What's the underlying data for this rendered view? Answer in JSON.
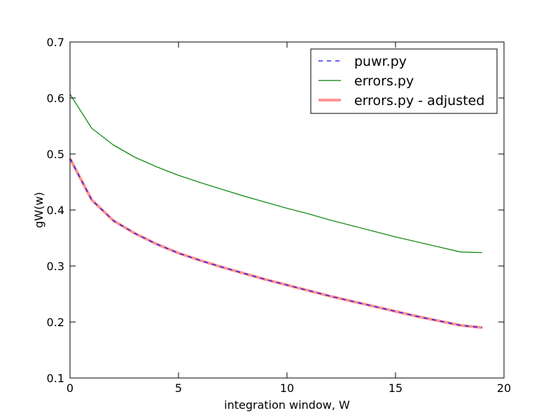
{
  "chart_data": {
    "type": "line",
    "title": "",
    "xlabel": "integration window, W",
    "ylabel": "gW(w)",
    "xlim": [
      0,
      20
    ],
    "ylim": [
      0.1,
      0.7
    ],
    "xticks": [
      "0",
      "5",
      "10",
      "15",
      "20"
    ],
    "yticks": [
      "0.1",
      "0.2",
      "0.3",
      "0.4",
      "0.5",
      "0.6",
      "0.7"
    ],
    "grid": false,
    "legend_position": "top-right",
    "x": [
      0,
      1,
      2,
      3,
      4,
      5,
      6,
      7,
      8,
      9,
      10,
      11,
      12,
      13,
      14,
      15,
      16,
      17,
      18,
      19
    ],
    "series": [
      {
        "name": "puwr.py",
        "color": "#0000ff",
        "style": "dashed",
        "values": [
          0.492,
          0.418,
          0.381,
          0.358,
          0.339,
          0.323,
          0.31,
          0.298,
          0.287,
          0.276,
          0.266,
          0.256,
          0.246,
          0.237,
          0.228,
          0.219,
          0.21,
          0.202,
          0.194,
          0.19
        ]
      },
      {
        "name": "errors.py",
        "color": "#008000",
        "style": "solid",
        "values": [
          0.607,
          0.546,
          0.516,
          0.494,
          0.477,
          0.462,
          0.449,
          0.437,
          0.425,
          0.414,
          0.403,
          0.393,
          0.382,
          0.372,
          0.362,
          0.352,
          0.343,
          0.334,
          0.325,
          0.324
        ]
      },
      {
        "name": "errors.py - adjusted",
        "color": "#ff8080",
        "style": "thick",
        "values": [
          0.492,
          0.418,
          0.381,
          0.358,
          0.339,
          0.323,
          0.31,
          0.298,
          0.287,
          0.276,
          0.266,
          0.256,
          0.246,
          0.237,
          0.228,
          0.219,
          0.21,
          0.202,
          0.194,
          0.19
        ]
      }
    ]
  }
}
